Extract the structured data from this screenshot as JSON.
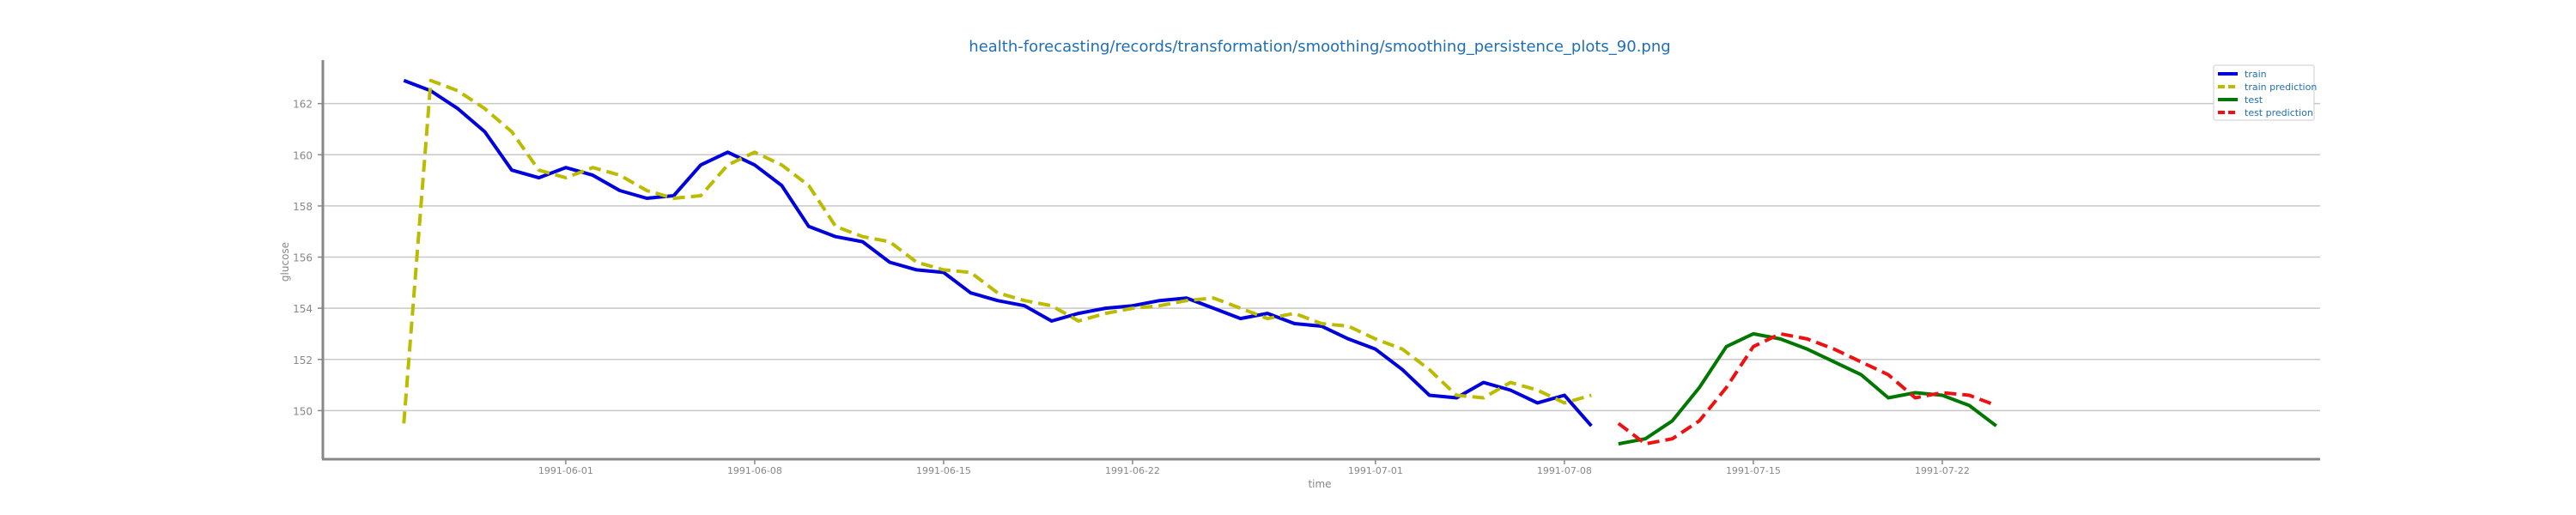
{
  "chart_data": {
    "type": "line",
    "title": "health-forecasting/records/transformation/smoothing/smoothing_persistence_plots_90.png",
    "xlabel": "time",
    "ylabel": "glucose",
    "x_ticks": [
      "1991-06-01",
      "1991-06-08",
      "1991-06-15",
      "1991-06-22",
      "1991-07-01",
      "1991-07-08",
      "1991-07-15",
      "1991-07-22"
    ],
    "y_ticks": [
      150,
      152,
      154,
      156,
      158,
      160,
      162
    ],
    "xlim": [
      "1991-05-23",
      "1991-08-05"
    ],
    "ylim": [
      148.1,
      163.7
    ],
    "grid": "horizontal",
    "legend_position": "top-right",
    "series": [
      {
        "name": "train",
        "color": "#0000dd",
        "style": "solid",
        "points": [
          [
            "1991-05-26",
            162.9
          ],
          [
            "1991-05-27",
            162.5
          ],
          [
            "1991-05-28",
            161.8
          ],
          [
            "1991-05-29",
            160.9
          ],
          [
            "1991-05-30",
            159.4
          ],
          [
            "1991-05-31",
            159.1
          ],
          [
            "1991-06-01",
            159.5
          ],
          [
            "1991-06-02",
            159.2
          ],
          [
            "1991-06-03",
            158.6
          ],
          [
            "1991-06-04",
            158.3
          ],
          [
            "1991-06-05",
            158.4
          ],
          [
            "1991-06-06",
            159.6
          ],
          [
            "1991-06-07",
            160.1
          ],
          [
            "1991-06-08",
            159.6
          ],
          [
            "1991-06-09",
            158.8
          ],
          [
            "1991-06-10",
            157.2
          ],
          [
            "1991-06-11",
            156.8
          ],
          [
            "1991-06-12",
            156.6
          ],
          [
            "1991-06-13",
            155.8
          ],
          [
            "1991-06-14",
            155.5
          ],
          [
            "1991-06-15",
            155.4
          ],
          [
            "1991-06-16",
            154.6
          ],
          [
            "1991-06-17",
            154.3
          ],
          [
            "1991-06-18",
            154.1
          ],
          [
            "1991-06-19",
            153.5
          ],
          [
            "1991-06-20",
            153.8
          ],
          [
            "1991-06-21",
            154.0
          ],
          [
            "1991-06-22",
            154.1
          ],
          [
            "1991-06-23",
            154.3
          ],
          [
            "1991-06-24",
            154.4
          ],
          [
            "1991-06-25",
            154.0
          ],
          [
            "1991-06-26",
            153.6
          ],
          [
            "1991-06-27",
            153.8
          ],
          [
            "1991-06-28",
            153.4
          ],
          [
            "1991-06-29",
            153.3
          ],
          [
            "1991-06-30",
            152.8
          ],
          [
            "1991-07-01",
            152.4
          ],
          [
            "1991-07-02",
            151.6
          ],
          [
            "1991-07-03",
            150.6
          ],
          [
            "1991-07-04",
            150.5
          ],
          [
            "1991-07-05",
            151.1
          ],
          [
            "1991-07-06",
            150.8
          ],
          [
            "1991-07-07",
            150.3
          ],
          [
            "1991-07-08",
            150.6
          ],
          [
            "1991-07-09",
            149.4
          ]
        ]
      },
      {
        "name": "train prediction",
        "color": "#bbbb00",
        "style": "dashed",
        "points": [
          [
            "1991-05-26",
            149.5
          ],
          [
            "1991-05-27",
            162.9
          ],
          [
            "1991-05-28",
            162.5
          ],
          [
            "1991-05-29",
            161.8
          ],
          [
            "1991-05-30",
            160.9
          ],
          [
            "1991-05-31",
            159.4
          ],
          [
            "1991-06-01",
            159.1
          ],
          [
            "1991-06-02",
            159.5
          ],
          [
            "1991-06-03",
            159.2
          ],
          [
            "1991-06-04",
            158.6
          ],
          [
            "1991-06-05",
            158.3
          ],
          [
            "1991-06-06",
            158.4
          ],
          [
            "1991-06-07",
            159.6
          ],
          [
            "1991-06-08",
            160.1
          ],
          [
            "1991-06-09",
            159.6
          ],
          [
            "1991-06-10",
            158.8
          ],
          [
            "1991-06-11",
            157.2
          ],
          [
            "1991-06-12",
            156.8
          ],
          [
            "1991-06-13",
            156.6
          ],
          [
            "1991-06-14",
            155.8
          ],
          [
            "1991-06-15",
            155.5
          ],
          [
            "1991-06-16",
            155.4
          ],
          [
            "1991-06-17",
            154.6
          ],
          [
            "1991-06-18",
            154.3
          ],
          [
            "1991-06-19",
            154.1
          ],
          [
            "1991-06-20",
            153.5
          ],
          [
            "1991-06-21",
            153.8
          ],
          [
            "1991-06-22",
            154.0
          ],
          [
            "1991-06-23",
            154.1
          ],
          [
            "1991-06-24",
            154.3
          ],
          [
            "1991-06-25",
            154.4
          ],
          [
            "1991-06-26",
            154.0
          ],
          [
            "1991-06-27",
            153.6
          ],
          [
            "1991-06-28",
            153.8
          ],
          [
            "1991-06-29",
            153.4
          ],
          [
            "1991-06-30",
            153.3
          ],
          [
            "1991-07-01",
            152.8
          ],
          [
            "1991-07-02",
            152.4
          ],
          [
            "1991-07-03",
            151.6
          ],
          [
            "1991-07-04",
            150.6
          ],
          [
            "1991-07-05",
            150.5
          ],
          [
            "1991-07-06",
            151.1
          ],
          [
            "1991-07-07",
            150.8
          ],
          [
            "1991-07-08",
            150.3
          ],
          [
            "1991-07-09",
            150.6
          ]
        ]
      },
      {
        "name": "test",
        "color": "#007700",
        "style": "solid",
        "points": [
          [
            "1991-07-10",
            148.7
          ],
          [
            "1991-07-11",
            148.9
          ],
          [
            "1991-07-12",
            149.6
          ],
          [
            "1991-07-13",
            150.9
          ],
          [
            "1991-07-14",
            152.5
          ],
          [
            "1991-07-15",
            153.0
          ],
          [
            "1991-07-16",
            152.8
          ],
          [
            "1991-07-17",
            152.4
          ],
          [
            "1991-07-18",
            151.9
          ],
          [
            "1991-07-19",
            151.4
          ],
          [
            "1991-07-20",
            150.5
          ],
          [
            "1991-07-21",
            150.7
          ],
          [
            "1991-07-22",
            150.6
          ],
          [
            "1991-07-23",
            150.2
          ],
          [
            "1991-07-24",
            149.4
          ]
        ]
      },
      {
        "name": "test prediction",
        "color": "#ee1111",
        "style": "dashed",
        "points": [
          [
            "1991-07-10",
            149.5
          ],
          [
            "1991-07-11",
            148.7
          ],
          [
            "1991-07-12",
            148.9
          ],
          [
            "1991-07-13",
            149.6
          ],
          [
            "1991-07-14",
            150.9
          ],
          [
            "1991-07-15",
            152.5
          ],
          [
            "1991-07-16",
            153.0
          ],
          [
            "1991-07-17",
            152.8
          ],
          [
            "1991-07-18",
            152.4
          ],
          [
            "1991-07-19",
            151.9
          ],
          [
            "1991-07-20",
            151.4
          ],
          [
            "1991-07-21",
            150.5
          ],
          [
            "1991-07-22",
            150.7
          ],
          [
            "1991-07-23",
            150.6
          ],
          [
            "1991-07-24",
            150.2
          ]
        ]
      }
    ]
  }
}
